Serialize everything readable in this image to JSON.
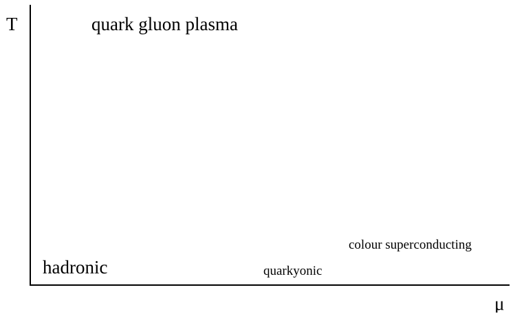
{
  "axes": {
    "y_label": "T",
    "x_label": "μ"
  },
  "regions": [
    {
      "label": "quark gluon plasma"
    },
    {
      "label": "hadronic"
    },
    {
      "label": "quarkyonic"
    },
    {
      "label": "colour superconducting"
    }
  ]
}
